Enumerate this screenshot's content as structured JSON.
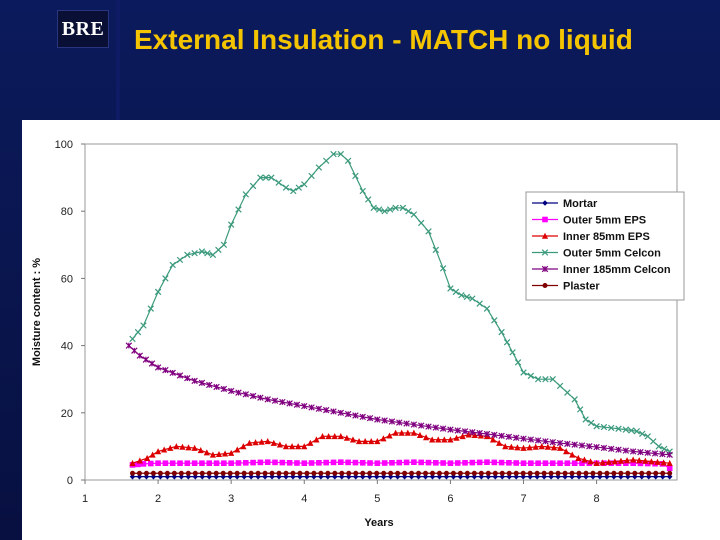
{
  "logo": {
    "text": "BRE"
  },
  "slide": {
    "title": "External Insulation - MATCH no liquid"
  },
  "chart_data": {
    "type": "line",
    "title": "",
    "xlabel": "Years",
    "ylabel": "Moisture content : %",
    "xlim": [
      1,
      9.1
    ],
    "ylim": [
      0,
      100
    ],
    "xticks": [
      1,
      2,
      3,
      4,
      5,
      6,
      7,
      8
    ],
    "yticks": [
      0,
      20,
      40,
      60,
      80,
      100
    ],
    "legend_position": "right",
    "series": [
      {
        "name": "Mortar",
        "color": "#000080",
        "marker": "diamond",
        "x": [
          1.65,
          9.0
        ],
        "y": [
          1.0,
          1.0
        ]
      },
      {
        "name": "Outer 5mm EPS",
        "color": "#ff00ff",
        "marker": "square",
        "x": [
          1.65,
          1.8,
          2.0,
          2.5,
          3.0,
          3.5,
          4.0,
          4.5,
          5.0,
          5.5,
          6.0,
          6.5,
          7.0,
          7.5,
          8.0,
          8.5,
          8.9,
          9.0
        ],
        "y": [
          4.5,
          4.8,
          5.0,
          5.0,
          5.0,
          5.3,
          5.0,
          5.3,
          5.0,
          5.3,
          5.0,
          5.3,
          5.0,
          5.0,
          5.0,
          5.0,
          4.8,
          3.5
        ]
      },
      {
        "name": "Inner 85mm EPS",
        "color": "#dd0000",
        "marker": "triangle",
        "x": [
          1.65,
          1.85,
          2.0,
          2.25,
          2.5,
          2.75,
          3.0,
          3.25,
          3.5,
          3.75,
          4.0,
          4.25,
          4.5,
          4.75,
          5.0,
          5.25,
          5.5,
          5.75,
          6.0,
          6.25,
          6.5,
          6.75,
          7.0,
          7.25,
          7.5,
          7.75,
          8.0,
          8.25,
          8.5,
          8.75,
          9.0
        ],
        "y": [
          5.0,
          6.5,
          8.5,
          10.0,
          9.5,
          7.5,
          8.0,
          11.0,
          11.5,
          10.0,
          10.0,
          13.0,
          13.0,
          11.5,
          11.5,
          14.0,
          14.0,
          12.0,
          12.0,
          13.5,
          13.0,
          10.0,
          9.5,
          10.0,
          9.5,
          6.5,
          5.0,
          5.5,
          6.0,
          5.5,
          5.0
        ]
      },
      {
        "name": "Outer 5mm Celcon",
        "color": "#3c9a7c",
        "marker": "x",
        "x": [
          1.65,
          1.8,
          2.0,
          2.2,
          2.4,
          2.6,
          2.75,
          2.9,
          3.0,
          3.2,
          3.4,
          3.55,
          3.75,
          3.85,
          4.0,
          4.2,
          4.4,
          4.5,
          4.6,
          4.8,
          4.95,
          5.1,
          5.25,
          5.35,
          5.5,
          5.7,
          5.9,
          6.0,
          6.15,
          6.3,
          6.5,
          6.7,
          6.85,
          7.0,
          7.2,
          7.4,
          7.5,
          7.7,
          7.85,
          8.0,
          8.2,
          8.4,
          8.55,
          8.7,
          8.85,
          9.0
        ],
        "y": [
          42,
          46,
          56,
          64,
          67,
          68,
          67,
          70,
          76,
          85,
          90,
          90,
          87,
          86,
          88,
          93,
          97,
          97,
          95,
          86,
          81,
          80,
          81,
          81,
          79,
          74,
          63,
          57,
          55,
          54,
          51,
          44,
          38,
          32,
          30,
          30,
          28,
          24,
          18,
          16,
          15.5,
          15,
          14.5,
          13,
          10,
          8.5
        ]
      },
      {
        "name": "Inner 185mm Celcon",
        "color": "#800080",
        "marker": "star",
        "x": [
          1.6,
          1.75,
          2.0,
          2.5,
          3.0,
          3.5,
          4.0,
          4.5,
          5.0,
          5.5,
          6.0,
          6.5,
          7.0,
          7.5,
          8.0,
          8.5,
          9.0
        ],
        "y": [
          40.0,
          37.0,
          33.5,
          29.5,
          26.5,
          24.0,
          22.0,
          20.0,
          18.0,
          16.5,
          15.0,
          13.7,
          12.3,
          11.0,
          9.8,
          8.5,
          7.5
        ]
      },
      {
        "name": "Plaster",
        "color": "#800000",
        "marker": "circle",
        "x": [
          1.65,
          9.0
        ],
        "y": [
          2.0,
          2.0
        ]
      }
    ]
  }
}
